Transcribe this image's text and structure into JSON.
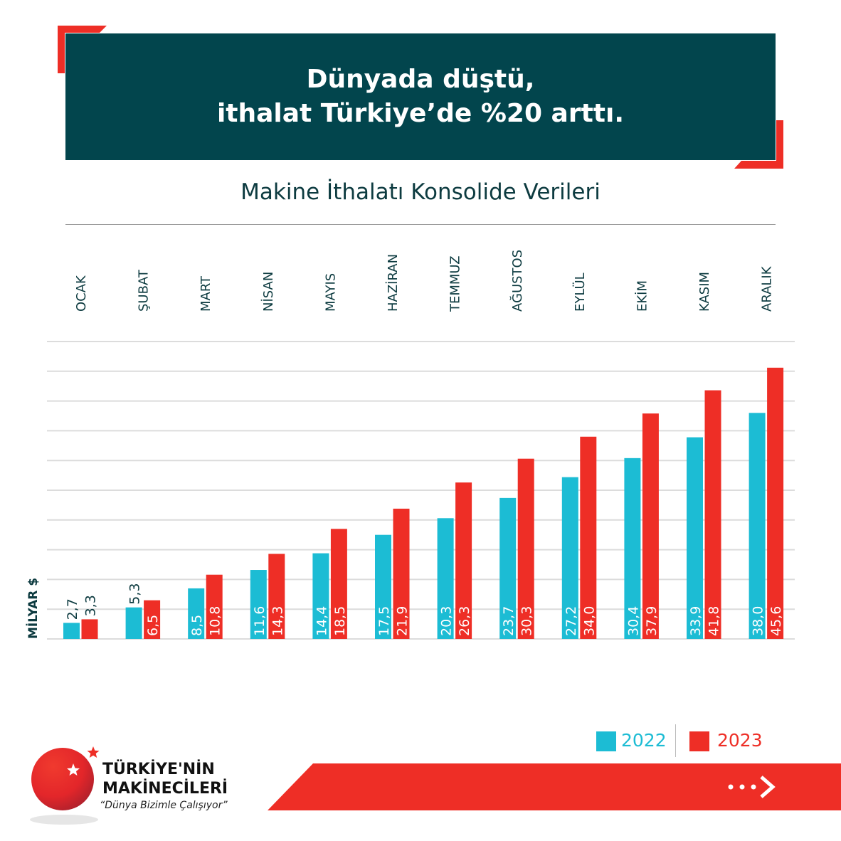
{
  "header": {
    "title_line1": "Dünyada düştü,",
    "title_line2": "ithalat Türkiye’de %20 arttı."
  },
  "colors": {
    "header_bg": "#02454d",
    "accent_red": "#ee2e26",
    "series_2022": "#1cbcd4",
    "series_2023": "#ee2e26",
    "text_dark": "#0d3b40"
  },
  "chart_data": {
    "type": "bar",
    "title": "Makine İthalatı Konsolide Verileri",
    "ylabel": "MİLYAR $",
    "categories": [
      "OCAK",
      "ŞUBAT",
      "MART",
      "NİSAN",
      "MAYIS",
      "HAZİRAN",
      "TEMMUZ",
      "AĞUSTOS",
      "EYLÜL",
      "EKİM",
      "KASIM",
      "ARALIK"
    ],
    "series": [
      {
        "name": "2022",
        "values": [
          2.7,
          5.3,
          8.5,
          11.6,
          14.4,
          17.5,
          20.3,
          23.7,
          27.2,
          30.4,
          33.9,
          38.0
        ],
        "labels": [
          "2,7",
          "5,3",
          "8,5",
          "11,6",
          "14,4",
          "17,5",
          "20,3",
          "23,7",
          "27,2",
          "30,4",
          "33,9",
          "38,0"
        ]
      },
      {
        "name": "2023",
        "values": [
          3.3,
          6.5,
          10.8,
          14.3,
          18.5,
          21.9,
          26.3,
          30.3,
          34.0,
          37.9,
          41.8,
          45.6
        ],
        "labels": [
          "3,3",
          "6,5",
          "10,8",
          "14,3",
          "18,5",
          "21,9",
          "26,3",
          "30,3",
          "34,0",
          "37,9",
          "41,8",
          "45,6"
        ]
      }
    ],
    "ylim": [
      0,
      50
    ],
    "grid": true,
    "legend": "bottom-right"
  },
  "legend": {
    "items": [
      "2022",
      "2023"
    ]
  },
  "footer": {
    "brand_line1": "TÜRKİYE'NİN",
    "brand_line2": "MAKİNECİLERİ",
    "tagline": "“Dünya Bizimle Çalışıyor”",
    "next_icon": "dots-chevron-right"
  }
}
